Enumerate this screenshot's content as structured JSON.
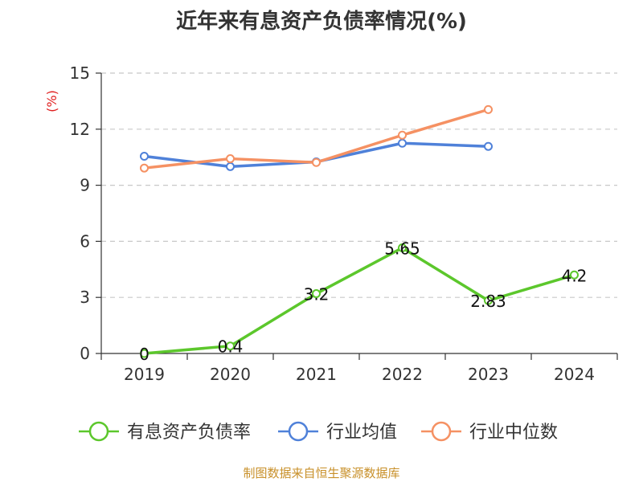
{
  "title": "近年来有息资产负债率情况(%)",
  "source": "制图数据来自恒生聚源数据库",
  "chart_data": {
    "type": "line",
    "unit_label": "(%)",
    "categories": [
      "2019",
      "2020",
      "2021",
      "2022",
      "2023",
      "2024"
    ],
    "ylim": [
      0,
      15
    ],
    "yticks": [
      "0",
      "3",
      "6",
      "9",
      "12",
      "15"
    ],
    "grid": true,
    "legend_position": "bottom",
    "series": [
      {
        "name": "有息资产负债率",
        "color": "#5cc72c",
        "values": [
          0,
          0.4,
          3.2,
          5.65,
          2.83,
          4.2
        ],
        "labels": [
          "0",
          "0.4",
          "3.2",
          "5.65",
          "2.83",
          "4.2"
        ]
      },
      {
        "name": "行业均值",
        "color": "#4f81d9",
        "values": [
          10.55,
          10.0,
          10.25,
          11.25,
          11.08,
          null
        ]
      },
      {
        "name": "行业中位数",
        "color": "#f59163",
        "values": [
          9.92,
          10.42,
          10.22,
          11.68,
          13.05,
          null
        ]
      }
    ]
  }
}
